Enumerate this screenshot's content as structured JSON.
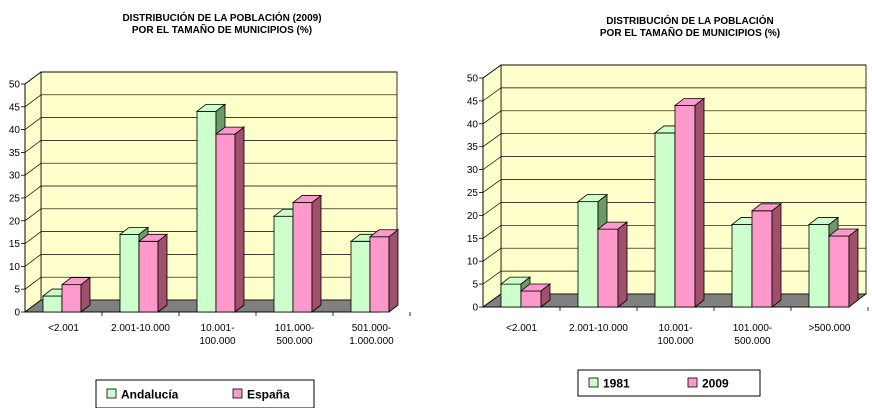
{
  "chart_data": [
    {
      "type": "bar",
      "title_lines": [
        "DISTRIBUCIÓN DE LA POBLACIÓN (2009)",
        "POR EL TAMAÑO DE MUNICIPIOS (%)"
      ],
      "ylim": [
        0,
        50
      ],
      "yticks": [
        "0",
        "5",
        "10",
        "15",
        "20",
        "25",
        "30",
        "35",
        "40",
        "45",
        "50"
      ],
      "categories": [
        [
          "<2.001"
        ],
        [
          "2.001-10.000"
        ],
        [
          "10.001-",
          "100.000"
        ],
        [
          "101.000-",
          "500.000"
        ],
        [
          "501.000-",
          "1.000.000"
        ]
      ],
      "series": [
        {
          "name": "Andalucía",
          "values": [
            3.5,
            17,
            44,
            21,
            15.5
          ],
          "color": "#ccffcc",
          "side": "#6a9a6a"
        },
        {
          "name": "España",
          "values": [
            6,
            15.5,
            39,
            24,
            16.5
          ],
          "color": "#ff99cc",
          "side": "#a0506a"
        }
      ],
      "grid": true,
      "legend_position": "bottom"
    },
    {
      "type": "bar",
      "title_lines": [
        "DISTRIBUCIÓN DE LA POBLACIÓN",
        "POR EL TAMAÑO DE MUNICIPIOS (%)"
      ],
      "ylim": [
        0,
        50
      ],
      "yticks": [
        "0",
        "5",
        "10",
        "15",
        "20",
        "25",
        "30",
        "35",
        "40",
        "45",
        "50"
      ],
      "categories": [
        [
          "<2.001"
        ],
        [
          "2.001-10.000"
        ],
        [
          "10.001-",
          "100.000"
        ],
        [
          "101.000-",
          "500.000"
        ],
        [
          ">500.000"
        ]
      ],
      "series": [
        {
          "name": "1981",
          "values": [
            5,
            23,
            38,
            18,
            18
          ],
          "color": "#ccffcc",
          "side": "#6a9a6a"
        },
        {
          "name": "2009",
          "values": [
            3.5,
            17,
            44,
            21,
            15.5
          ],
          "color": "#ff99cc",
          "side": "#a0506a"
        }
      ],
      "grid": true,
      "legend_position": "bottom"
    }
  ]
}
